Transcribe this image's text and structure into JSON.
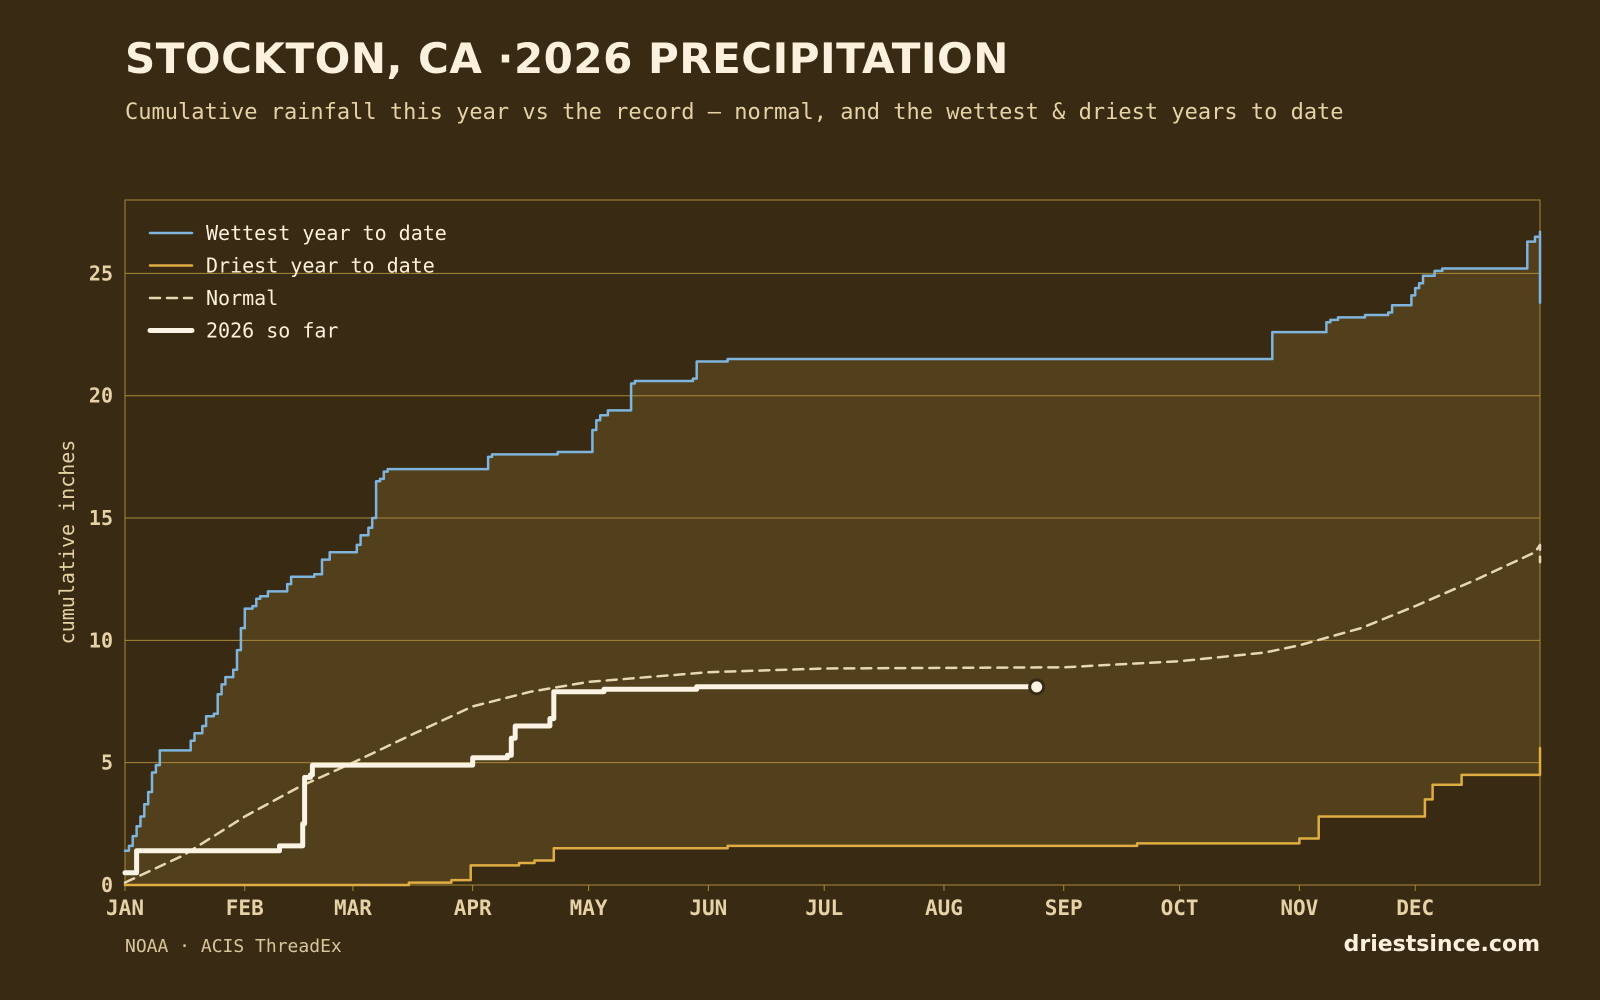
{
  "header": {
    "title": "STOCKTON, CA ·2026 PRECIPITATION",
    "subtitle": "Cumulative rainfall this year vs the record — normal, and the wettest & driest years to date"
  },
  "footer": {
    "source": "NOAA · ACIS ThreadEx",
    "brand": "driestsince.com"
  },
  "colors": {
    "background": "#382a13",
    "band_fill": "#523f1c",
    "grid": "#a98a38",
    "wettest": "#7fb4dc",
    "driest": "#e0ad43",
    "normal": "#e6d8b0",
    "current": "#fbf4e4",
    "axis_text": "#e6d2a6"
  },
  "chart_data": {
    "type": "line",
    "ylabel": "cumulative inches",
    "xlabel": "",
    "ylim": [
      0,
      28
    ],
    "xlim": [
      0,
      365
    ],
    "yticks": [
      0,
      5,
      10,
      15,
      20,
      25
    ],
    "months": [
      {
        "label": "JAN",
        "day": 0
      },
      {
        "label": "FEB",
        "day": 31
      },
      {
        "label": "MAR",
        "day": 59
      },
      {
        "label": "APR",
        "day": 90
      },
      {
        "label": "MAY",
        "day": 120
      },
      {
        "label": "JUN",
        "day": 151
      },
      {
        "label": "JUL",
        "day": 181
      },
      {
        "label": "AUG",
        "day": 212
      },
      {
        "label": "SEP",
        "day": 243
      },
      {
        "label": "OCT",
        "day": 273
      },
      {
        "label": "NOV",
        "day": 304
      },
      {
        "label": "DEC",
        "day": 334
      }
    ],
    "grid": true,
    "legend_position": "top-left",
    "legend": [
      {
        "key": "wettest",
        "label": "Wettest year to date"
      },
      {
        "key": "driest",
        "label": "Driest year to date"
      },
      {
        "key": "normal",
        "label": "Normal"
      },
      {
        "key": "current",
        "label": "2026 so far"
      }
    ],
    "series": [
      {
        "name": "Wettest year to date",
        "key": "wettest",
        "style": "step",
        "points": [
          [
            0,
            1.4
          ],
          [
            1,
            1.6
          ],
          [
            2,
            2.0
          ],
          [
            3,
            2.4
          ],
          [
            4,
            2.8
          ],
          [
            5,
            3.3
          ],
          [
            6,
            3.8
          ],
          [
            7,
            4.6
          ],
          [
            8,
            4.9
          ],
          [
            9,
            5.5
          ],
          [
            16,
            5.5
          ],
          [
            17,
            5.9
          ],
          [
            18,
            6.2
          ],
          [
            19,
            6.2
          ],
          [
            20,
            6.5
          ],
          [
            21,
            6.9
          ],
          [
            22,
            6.9
          ],
          [
            23,
            7.0
          ],
          [
            24,
            7.8
          ],
          [
            25,
            8.2
          ],
          [
            26,
            8.5
          ],
          [
            27,
            8.5
          ],
          [
            28,
            8.8
          ],
          [
            29,
            9.6
          ],
          [
            30,
            10.5
          ],
          [
            31,
            11.3
          ],
          [
            32,
            11.3
          ],
          [
            33,
            11.4
          ],
          [
            34,
            11.7
          ],
          [
            35,
            11.8
          ],
          [
            36,
            11.8
          ],
          [
            37,
            12.0
          ],
          [
            41,
            12.0
          ],
          [
            42,
            12.3
          ],
          [
            43,
            12.6
          ],
          [
            48,
            12.6
          ],
          [
            49,
            12.7
          ],
          [
            50,
            12.7
          ],
          [
            51,
            13.3
          ],
          [
            52,
            13.3
          ],
          [
            53,
            13.6
          ],
          [
            59,
            13.6
          ],
          [
            60,
            13.9
          ],
          [
            61,
            14.3
          ],
          [
            62,
            14.3
          ],
          [
            63,
            14.6
          ],
          [
            64,
            15.0
          ],
          [
            65,
            16.5
          ],
          [
            66,
            16.6
          ],
          [
            67,
            16.9
          ],
          [
            68,
            17.0
          ],
          [
            93,
            17.0
          ],
          [
            94,
            17.5
          ],
          [
            95,
            17.6
          ],
          [
            111,
            17.6
          ],
          [
            112,
            17.7
          ],
          [
            120,
            17.7
          ],
          [
            121,
            18.6
          ],
          [
            122,
            19.0
          ],
          [
            123,
            19.2
          ],
          [
            124,
            19.2
          ],
          [
            125,
            19.4
          ],
          [
            130,
            19.4
          ],
          [
            131,
            20.5
          ],
          [
            132,
            20.6
          ],
          [
            146,
            20.6
          ],
          [
            147,
            20.7
          ],
          [
            148,
            21.4
          ],
          [
            155,
            21.4
          ],
          [
            156,
            21.5
          ],
          [
            296,
            21.5
          ],
          [
            297,
            22.6
          ],
          [
            310,
            22.6
          ],
          [
            311,
            23.0
          ],
          [
            312,
            23.1
          ],
          [
            313,
            23.1
          ],
          [
            314,
            23.2
          ],
          [
            320,
            23.2
          ],
          [
            321,
            23.3
          ],
          [
            326,
            23.3
          ],
          [
            327,
            23.4
          ],
          [
            328,
            23.7
          ],
          [
            332,
            23.7
          ],
          [
            333,
            24.1
          ],
          [
            334,
            24.4
          ],
          [
            335,
            24.6
          ],
          [
            336,
            24.9
          ],
          [
            338,
            24.9
          ],
          [
            339,
            25.1
          ],
          [
            340,
            25.1
          ],
          [
            341,
            25.2
          ],
          [
            362,
            25.2
          ],
          [
            363,
            26.3
          ],
          [
            364,
            26.3
          ],
          [
            365,
            26.5
          ],
          [
            366,
            26.5
          ],
          [
            367,
            26.7
          ],
          [
            368,
            26.7
          ],
          [
            368.5,
            23.8
          ]
        ]
      },
      {
        "name": "Driest year to date",
        "key": "driest",
        "style": "step",
        "points": [
          [
            0,
            0
          ],
          [
            73,
            0
          ],
          [
            73.5,
            0.1
          ],
          [
            84,
            0.1
          ],
          [
            84.5,
            0.2
          ],
          [
            89,
            0.2
          ],
          [
            89.5,
            0.8
          ],
          [
            101,
            0.8
          ],
          [
            102,
            0.9
          ],
          [
            105,
            0.9
          ],
          [
            106,
            1.0
          ],
          [
            110,
            1.0
          ],
          [
            111,
            1.5
          ],
          [
            155,
            1.5
          ],
          [
            156,
            1.6
          ],
          [
            261,
            1.6
          ],
          [
            262,
            1.7
          ],
          [
            303,
            1.7
          ],
          [
            304,
            1.9
          ],
          [
            308,
            1.9
          ],
          [
            309,
            2.8
          ],
          [
            336,
            2.8
          ],
          [
            336.5,
            3.5
          ],
          [
            338,
            3.5
          ],
          [
            338.5,
            4.1
          ],
          [
            345,
            4.1
          ],
          [
            346,
            4.5
          ],
          [
            367.5,
            4.5
          ],
          [
            368.5,
            5.6
          ]
        ]
      },
      {
        "name": "Normal",
        "key": "normal",
        "style": "linear",
        "points": [
          [
            0,
            0.1
          ],
          [
            15,
            1.2
          ],
          [
            31,
            2.8
          ],
          [
            45,
            4.0
          ],
          [
            59,
            5.0
          ],
          [
            75,
            6.2
          ],
          [
            90,
            7.3
          ],
          [
            105,
            7.9
          ],
          [
            120,
            8.3
          ],
          [
            151,
            8.7
          ],
          [
            181,
            8.85
          ],
          [
            243,
            8.9
          ],
          [
            273,
            9.15
          ],
          [
            295,
            9.5
          ],
          [
            304,
            9.8
          ],
          [
            320,
            10.5
          ],
          [
            334,
            11.4
          ],
          [
            350,
            12.5
          ],
          [
            365,
            13.6
          ],
          [
            367,
            13.9
          ],
          [
            368.5,
            13.2
          ]
        ]
      },
      {
        "name": "2026 so far",
        "key": "current",
        "style": "step",
        "points": [
          [
            0,
            0.5
          ],
          [
            2,
            0.5
          ],
          [
            3,
            1.4
          ],
          [
            39,
            1.4
          ],
          [
            40,
            1.6
          ],
          [
            45,
            1.6
          ],
          [
            46,
            2.5
          ],
          [
            46.5,
            4.4
          ],
          [
            48,
            4.5
          ],
          [
            48.5,
            4.9
          ],
          [
            89,
            4.9
          ],
          [
            90,
            5.2
          ],
          [
            99,
            5.3
          ],
          [
            100,
            6.0
          ],
          [
            101,
            6.5
          ],
          [
            109,
            6.5
          ],
          [
            110,
            6.8
          ],
          [
            111,
            7.9
          ],
          [
            123,
            7.9
          ],
          [
            124,
            8.0
          ],
          [
            147,
            8.0
          ],
          [
            148,
            8.1
          ],
          [
            236,
            8.1
          ]
        ],
        "end_marker": true
      }
    ]
  }
}
